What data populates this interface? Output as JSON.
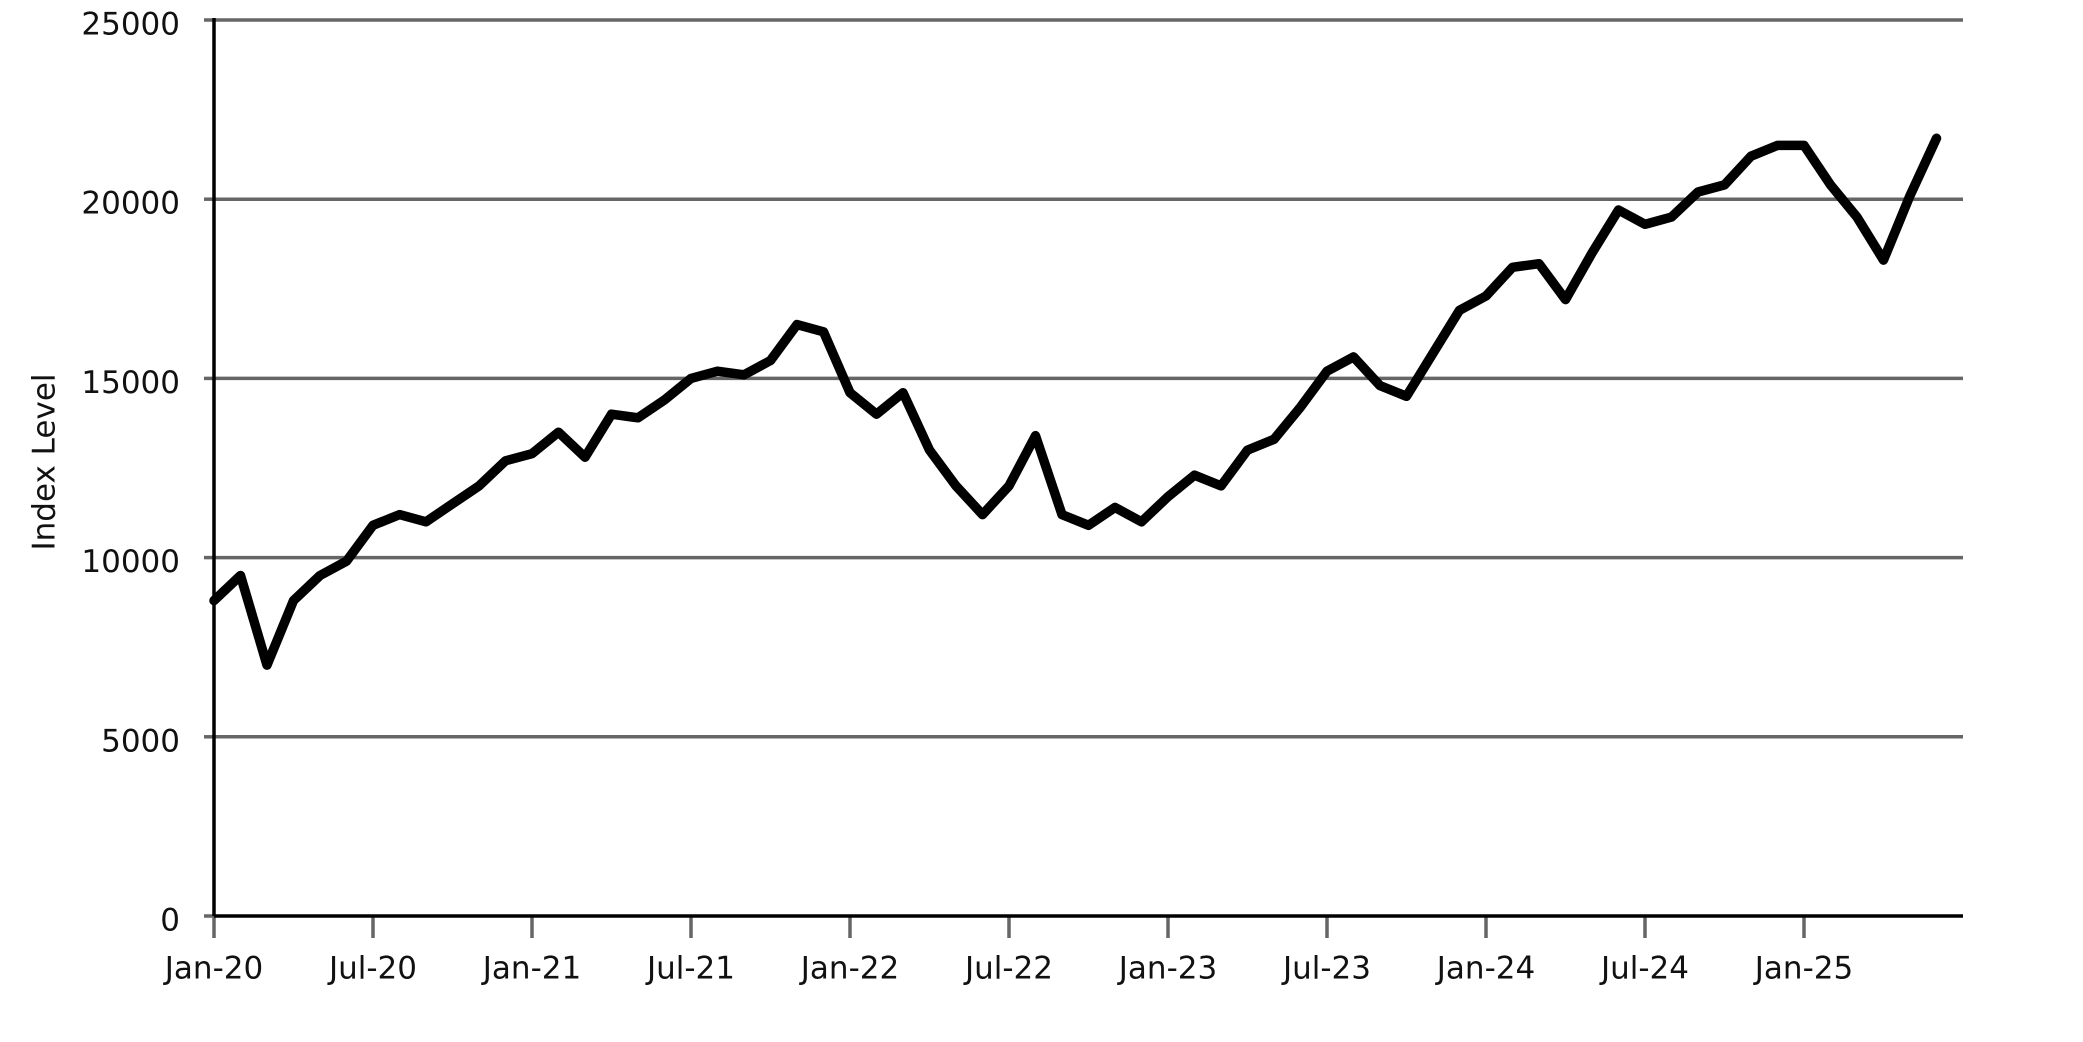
{
  "chart_data": {
    "type": "line",
    "ylabel": "Index Level",
    "x": [
      "2020-01",
      "2020-02",
      "2020-03",
      "2020-04",
      "2020-05",
      "2020-06",
      "2020-07",
      "2020-08",
      "2020-09",
      "2020-10",
      "2020-11",
      "2020-12",
      "2021-01",
      "2021-02",
      "2021-03",
      "2021-04",
      "2021-05",
      "2021-06",
      "2021-07",
      "2021-08",
      "2021-09",
      "2021-10",
      "2021-11",
      "2021-12",
      "2022-01",
      "2022-02",
      "2022-03",
      "2022-04",
      "2022-05",
      "2022-06",
      "2022-07",
      "2022-08",
      "2022-09",
      "2022-10",
      "2022-11",
      "2022-12",
      "2023-01",
      "2023-02",
      "2023-03",
      "2023-04",
      "2023-05",
      "2023-06",
      "2023-07",
      "2023-08",
      "2023-09",
      "2023-10",
      "2023-11",
      "2023-12",
      "2024-01",
      "2024-02",
      "2024-03",
      "2024-04",
      "2024-05",
      "2024-06",
      "2024-07",
      "2024-08",
      "2024-09",
      "2024-10",
      "2024-11",
      "2024-12",
      "2025-01",
      "2025-02",
      "2025-03",
      "2025-04",
      "2025-05",
      "2025-06"
    ],
    "series": [
      {
        "color": "#000000",
        "values": [
          8800,
          9500,
          7000,
          8800,
          9500,
          9900,
          10900,
          11200,
          11000,
          11500,
          12000,
          12700,
          12900,
          13500,
          12800,
          14000,
          13900,
          14400,
          15000,
          15200,
          15100,
          15500,
          16500,
          16300,
          14600,
          14000,
          14600,
          13000,
          12000,
          11200,
          12000,
          13400,
          11200,
          10900,
          11400,
          11000,
          11700,
          12300,
          12000,
          13000,
          13300,
          14200,
          15200,
          15600,
          14800,
          14500,
          15700,
          16900,
          17300,
          18100,
          18200,
          17200,
          18500,
          19700,
          19300,
          19500,
          20200,
          20400,
          21200,
          21500,
          21500,
          20400,
          19500,
          18300,
          20100,
          21700
        ]
      }
    ],
    "xlim": [
      "2020-01",
      "2025-07"
    ],
    "xticks": [
      {
        "value": "2020-01",
        "label": "Jan-20"
      },
      {
        "value": "2020-07",
        "label": "Jul-20"
      },
      {
        "value": "2021-01",
        "label": "Jan-21"
      },
      {
        "value": "2021-07",
        "label": "Jul-21"
      },
      {
        "value": "2022-01",
        "label": "Jan-22"
      },
      {
        "value": "2022-07",
        "label": "Jul-22"
      },
      {
        "value": "2023-01",
        "label": "Jan-23"
      },
      {
        "value": "2023-07",
        "label": "Jul-23"
      },
      {
        "value": "2024-01",
        "label": "Jan-24"
      },
      {
        "value": "2024-07",
        "label": "Jul-24"
      },
      {
        "value": "2025-01",
        "label": "Jan-25"
      }
    ],
    "ylim": [
      0,
      25000
    ],
    "yticks": [
      0,
      5000,
      10000,
      15000,
      20000,
      25000
    ],
    "grid": true
  }
}
